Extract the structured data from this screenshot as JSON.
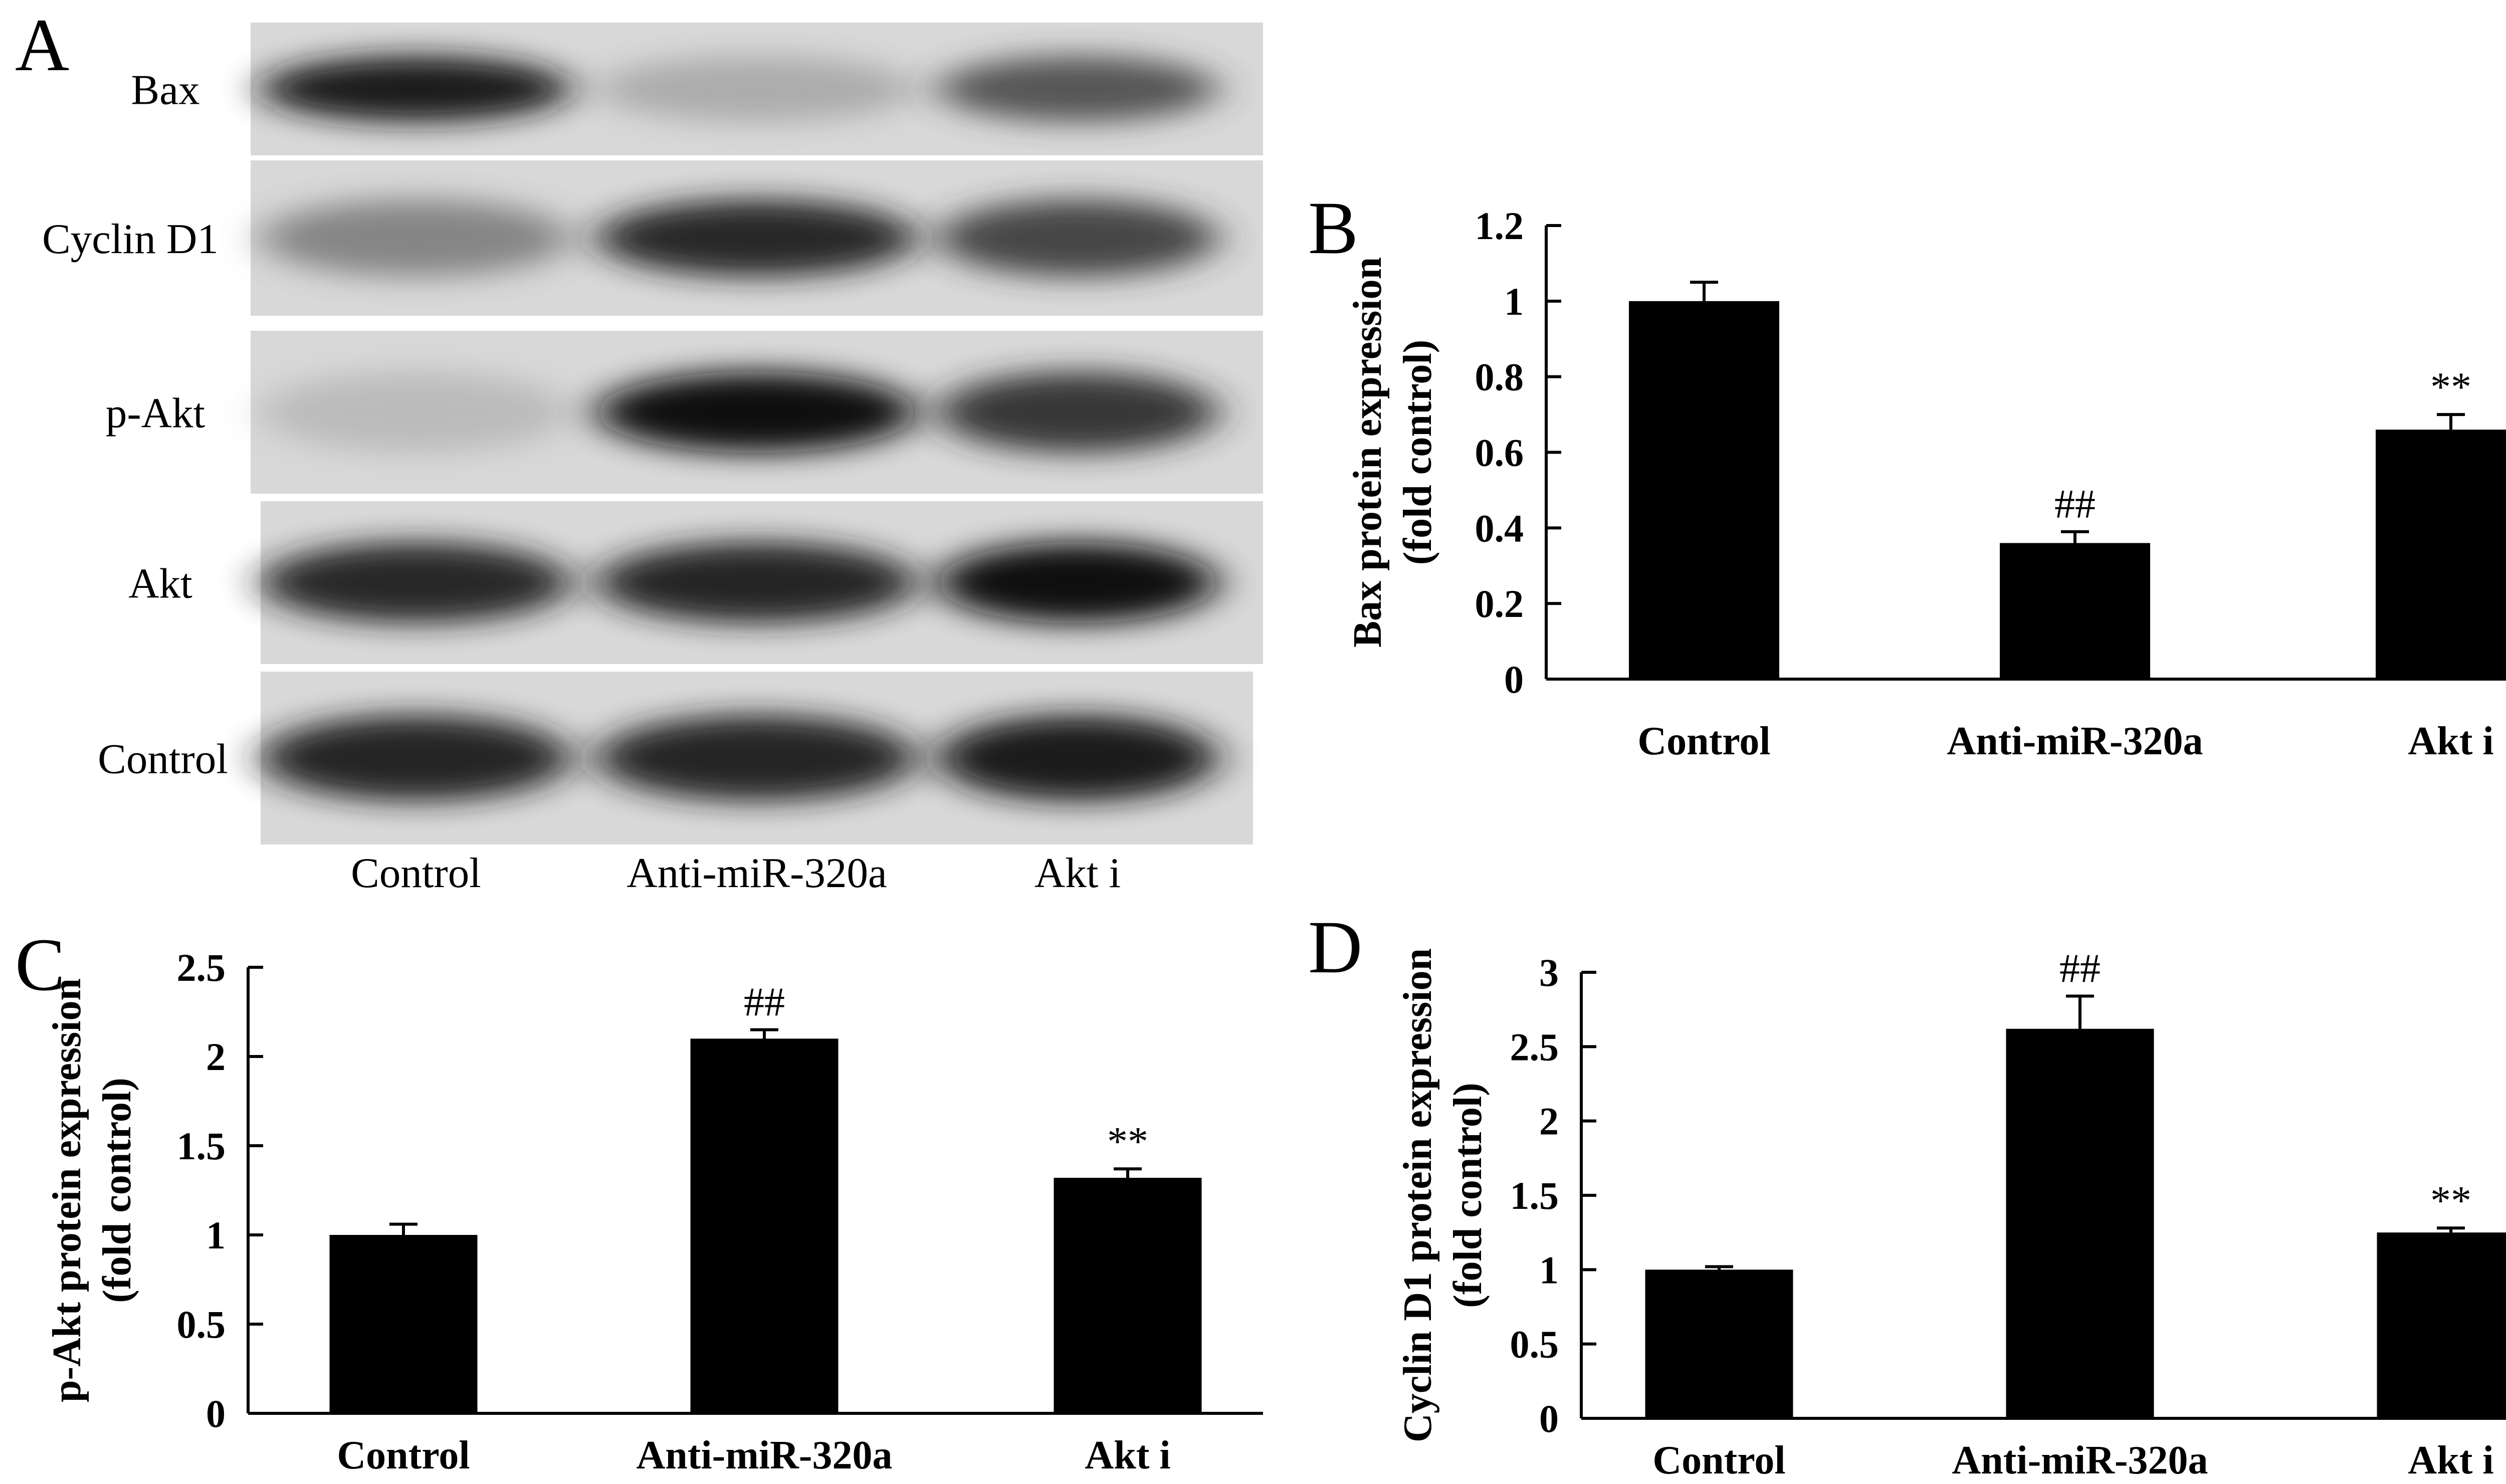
{
  "panels": {
    "A": "A",
    "B": "B",
    "C": "C",
    "D": "D"
  },
  "blot": {
    "rows": [
      "Bax",
      "Cyclin D1",
      "p-Akt",
      "Akt",
      "Control"
    ],
    "lanes": [
      "Control",
      "Anti-miR-320a",
      "Akt i"
    ],
    "band_intensity": [
      [
        0.95,
        0.35,
        0.75
      ],
      [
        0.55,
        0.9,
        0.8
      ],
      [
        0.25,
        0.98,
        0.85
      ],
      [
        0.9,
        0.92,
        0.98
      ],
      [
        0.92,
        0.92,
        0.95
      ]
    ]
  },
  "chart_data": [
    {
      "panel": "B",
      "type": "bar",
      "categories": [
        "Control",
        "Anti-miR-320a",
        "Akt i"
      ],
      "values": [
        1.0,
        0.36,
        0.66
      ],
      "errors": [
        0.05,
        0.03,
        0.04
      ],
      "annotations": [
        "",
        "##",
        "**"
      ],
      "ylabel": [
        "Bax protein expression",
        "(fold control)"
      ],
      "ylim": [
        0,
        1.2
      ],
      "yticks": [
        "0",
        "0.2",
        "0.4",
        "0.6",
        "0.8",
        "1",
        "1.2"
      ],
      "ytick_values": [
        0,
        0.2,
        0.4,
        0.6,
        0.8,
        1,
        1.2
      ],
      "grid": false,
      "bar_color": "#000000"
    },
    {
      "panel": "C",
      "type": "bar",
      "categories": [
        "Control",
        "Anti-miR-320a",
        "Akt i"
      ],
      "values": [
        1.0,
        2.1,
        1.32
      ],
      "errors": [
        0.06,
        0.05,
        0.05
      ],
      "annotations": [
        "",
        "##",
        "**"
      ],
      "ylabel": [
        "p-Akt protein expression",
        "(fold control)"
      ],
      "ylim": [
        0,
        2.5
      ],
      "yticks": [
        "0",
        "0.5",
        "1",
        "1.5",
        "2",
        "2.5"
      ],
      "ytick_values": [
        0,
        0.5,
        1,
        1.5,
        2,
        2.5
      ],
      "grid": false,
      "bar_color": "#000000"
    },
    {
      "panel": "D",
      "type": "bar",
      "categories": [
        "Control",
        "Anti-miR-320a",
        "Akt i"
      ],
      "values": [
        1.0,
        2.62,
        1.25
      ],
      "errors": [
        0.02,
        0.22,
        0.03
      ],
      "annotations": [
        "",
        "##",
        "**"
      ],
      "ylabel": [
        "Cyclin D1 protein expression",
        "(fold control)"
      ],
      "ylim": [
        0,
        3
      ],
      "yticks": [
        "0",
        "0.5",
        "1",
        "1.5",
        "2",
        "2.5",
        "3"
      ],
      "ytick_values": [
        0,
        0.5,
        1,
        1.5,
        2,
        2.5,
        3
      ],
      "grid": false,
      "bar_color": "#000000"
    }
  ]
}
